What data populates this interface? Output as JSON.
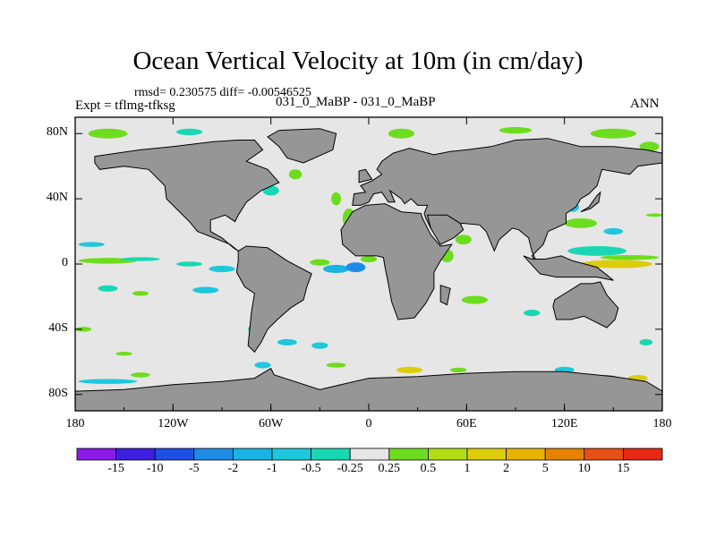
{
  "chart_data": {
    "type": "heatmap",
    "title": "Ocean Vertical Velocity at 10m (in cm/day)",
    "stats_text": "rmsd= 0.230575 diff= -0.00546525",
    "left_label": "Expt = tflmg-tfksg",
    "center_label": "031_0_MaBP - 031_0_MaBP",
    "right_label": "ANN",
    "x_ticks": [
      "180",
      "120W",
      "60W",
      "0",
      "60E",
      "120E",
      "180"
    ],
    "y_ticks": [
      "80N",
      "40N",
      "0",
      "40S",
      "80S"
    ],
    "xlim": [
      -180,
      180
    ],
    "ylim": [
      -90,
      90
    ],
    "colorbar_levels": [
      "-15",
      "-10",
      "-5",
      "-2",
      "-1",
      "-0.5",
      "-0.25",
      "0.25",
      "0.5",
      "1",
      "2",
      "5",
      "10",
      "15"
    ],
    "colorbar_colors": [
      "#8c1aeb",
      "#3c1fe0",
      "#1e50e6",
      "#1e8ce6",
      "#19b4e1",
      "#1ec8dc",
      "#19d7b4",
      "#e6e6e6",
      "#6edc1e",
      "#b4dc14",
      "#dccd0a",
      "#e6b400",
      "#e68200",
      "#e65014",
      "#e62814"
    ],
    "land_color": "#969696",
    "background_color": "#e6e6e6"
  }
}
